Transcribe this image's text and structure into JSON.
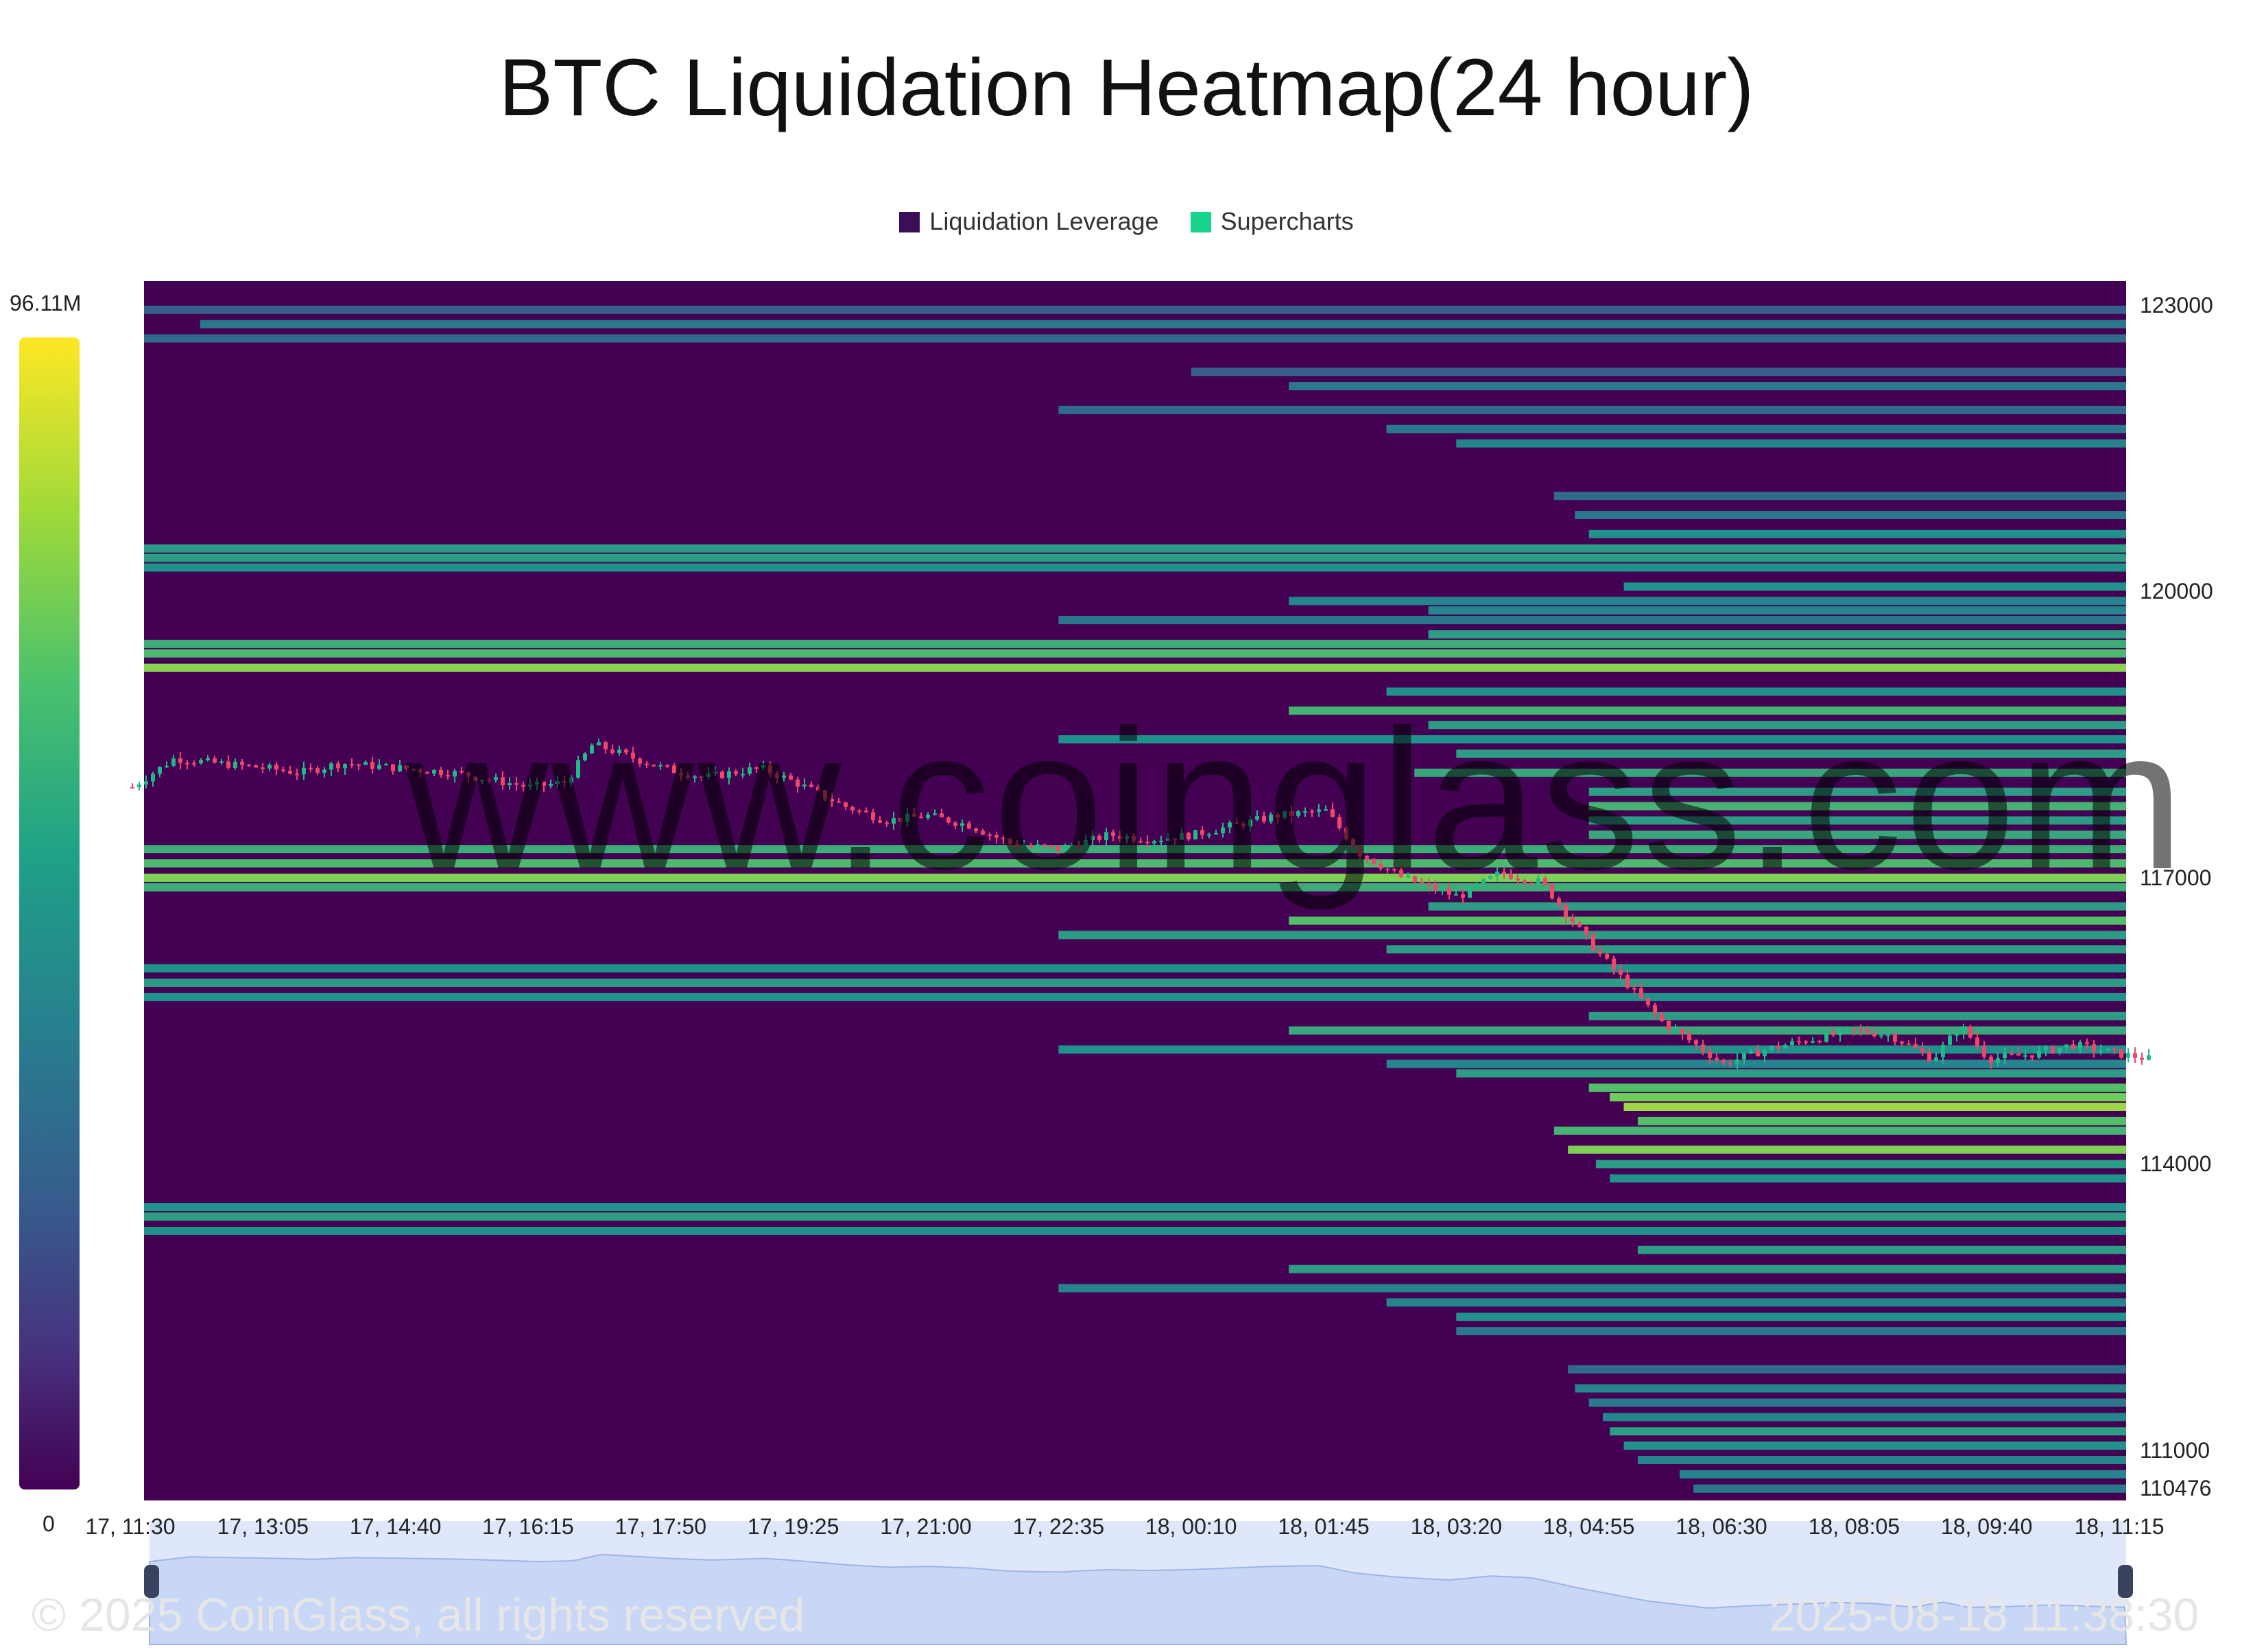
{
  "title": "BTC Liquidation Heatmap(24 hour)",
  "legend": [
    {
      "label": "Liquidation Leverage",
      "color": "#3b0f58"
    },
    {
      "label": "Supercharts",
      "color": "#19d48c"
    }
  ],
  "colorbar": {
    "max_label": "96.11M",
    "min_label": "0"
  },
  "watermark": "www.coinglass.com",
  "footer": {
    "copyright": "© 2025 CoinGlass, all rights reserved",
    "timestamp": "2025-08-18 11:38:30"
  },
  "chart_data": {
    "type": "heatmap",
    "title": "BTC Liquidation Heatmap(24 hour)",
    "x_tick_labels": [
      "17, 11:30",
      "17, 13:05",
      "17, 14:40",
      "17, 16:15",
      "17, 17:50",
      "17, 19:25",
      "17, 21:00",
      "17, 22:35",
      "18, 00:10",
      "18, 01:45",
      "18, 03:20",
      "18, 04:55",
      "18, 06:30",
      "18, 08:05",
      "18, 09:40",
      "18, 11:15"
    ],
    "y_tick_labels": [
      "123000",
      "120000",
      "117000",
      "114000",
      "111000",
      "110476"
    ],
    "ylim": [
      110476,
      123250
    ],
    "colorscale": {
      "min": 0,
      "max_label": "96.11M"
    },
    "bands": [
      {
        "price": 122950,
        "start": "17, 11:30",
        "value": 0.3
      },
      {
        "price": 122800,
        "start": "17, 12:20",
        "value": 0.4
      },
      {
        "price": 122650,
        "start": "17, 11:30",
        "value": 0.35
      },
      {
        "price": 122300,
        "start": "18, 00:10",
        "value": 0.3
      },
      {
        "price": 122150,
        "start": "18, 01:20",
        "value": 0.4
      },
      {
        "price": 121900,
        "start": "17, 22:35",
        "value": 0.35
      },
      {
        "price": 121700,
        "start": "18, 02:30",
        "value": 0.4
      },
      {
        "price": 121550,
        "start": "18, 03:20",
        "value": 0.45
      },
      {
        "price": 121000,
        "start": "18, 04:30",
        "value": 0.35
      },
      {
        "price": 120800,
        "start": "18, 04:45",
        "value": 0.4
      },
      {
        "price": 120600,
        "start": "18, 04:55",
        "value": 0.5
      },
      {
        "price": 120450,
        "start": "17, 11:30",
        "value": 0.55
      },
      {
        "price": 120350,
        "start": "17, 11:30",
        "value": 0.55
      },
      {
        "price": 120250,
        "start": "17, 11:30",
        "value": 0.5
      },
      {
        "price": 120050,
        "start": "18, 05:20",
        "value": 0.5
      },
      {
        "price": 119900,
        "start": "18, 01:20",
        "value": 0.45
      },
      {
        "price": 119800,
        "start": "18, 03:00",
        "value": 0.45
      },
      {
        "price": 119700,
        "start": "17, 22:35",
        "value": 0.4
      },
      {
        "price": 119550,
        "start": "18, 03:00",
        "value": 0.55
      },
      {
        "price": 119450,
        "start": "17, 11:30",
        "value": 0.62
      },
      {
        "price": 119350,
        "start": "17, 11:30",
        "value": 0.68
      },
      {
        "price": 119200,
        "start": "17, 11:30",
        "value": 0.82
      },
      {
        "price": 118950,
        "start": "18, 02:30",
        "value": 0.5
      },
      {
        "price": 118750,
        "start": "18, 01:20",
        "value": 0.65
      },
      {
        "price": 118600,
        "start": "18, 03:00",
        "value": 0.55
      },
      {
        "price": 118450,
        "start": "17, 22:35",
        "value": 0.5
      },
      {
        "price": 118300,
        "start": "18, 03:20",
        "value": 0.55
      },
      {
        "price": 118100,
        "start": "18, 02:50",
        "value": 0.6
      },
      {
        "price": 117900,
        "start": "18, 04:55",
        "value": 0.55
      },
      {
        "price": 117750,
        "start": "18, 04:55",
        "value": 0.65
      },
      {
        "price": 117600,
        "start": "18, 04:55",
        "value": 0.55
      },
      {
        "price": 117450,
        "start": "18, 04:55",
        "value": 0.6
      },
      {
        "price": 117300,
        "start": "17, 11:30",
        "value": 0.62
      },
      {
        "price": 117150,
        "start": "17, 11:30",
        "value": 0.68
      },
      {
        "price": 117000,
        "start": "17, 11:30",
        "value": 0.8
      },
      {
        "price": 116900,
        "start": "17, 11:30",
        "value": 0.62
      },
      {
        "price": 116700,
        "start": "18, 03:00",
        "value": 0.55
      },
      {
        "price": 116550,
        "start": "18, 01:20",
        "value": 0.7
      },
      {
        "price": 116400,
        "start": "17, 22:35",
        "value": 0.55
      },
      {
        "price": 116250,
        "start": "18, 02:30",
        "value": 0.55
      },
      {
        "price": 116050,
        "start": "17, 11:30",
        "value": 0.5
      },
      {
        "price": 115900,
        "start": "17, 11:30",
        "value": 0.55
      },
      {
        "price": 115750,
        "start": "17, 11:30",
        "value": 0.5
      },
      {
        "price": 115550,
        "start": "18, 04:55",
        "value": 0.55
      },
      {
        "price": 115400,
        "start": "18, 01:20",
        "value": 0.6
      },
      {
        "price": 115200,
        "start": "17, 22:35",
        "value": 0.5
      },
      {
        "price": 115050,
        "start": "18, 02:30",
        "value": 0.45
      },
      {
        "price": 114950,
        "start": "18, 03:20",
        "value": 0.55
      },
      {
        "price": 114800,
        "start": "18, 04:55",
        "value": 0.7
      },
      {
        "price": 114700,
        "start": "18, 05:10",
        "value": 0.78
      },
      {
        "price": 114600,
        "start": "18, 05:20",
        "value": 0.85
      },
      {
        "price": 114450,
        "start": "18, 05:30",
        "value": 0.7
      },
      {
        "price": 114350,
        "start": "18, 04:30",
        "value": 0.65
      },
      {
        "price": 114150,
        "start": "18, 04:40",
        "value": 0.8
      },
      {
        "price": 114000,
        "start": "18, 05:00",
        "value": 0.55
      },
      {
        "price": 113850,
        "start": "18, 05:10",
        "value": 0.5
      },
      {
        "price": 113550,
        "start": "17, 11:30",
        "value": 0.5
      },
      {
        "price": 113450,
        "start": "17, 11:30",
        "value": 0.55
      },
      {
        "price": 113300,
        "start": "17, 11:30",
        "value": 0.5
      },
      {
        "price": 113100,
        "start": "18, 05:30",
        "value": 0.55
      },
      {
        "price": 112900,
        "start": "18, 01:20",
        "value": 0.55
      },
      {
        "price": 112700,
        "start": "17, 22:35",
        "value": 0.45
      },
      {
        "price": 112550,
        "start": "18, 02:30",
        "value": 0.45
      },
      {
        "price": 112400,
        "start": "18, 03:20",
        "value": 0.5
      },
      {
        "price": 112250,
        "start": "18, 03:20",
        "value": 0.4
      },
      {
        "price": 111850,
        "start": "18, 04:40",
        "value": 0.35
      },
      {
        "price": 111650,
        "start": "18, 04:45",
        "value": 0.45
      },
      {
        "price": 111500,
        "start": "18, 04:55",
        "value": 0.4
      },
      {
        "price": 111350,
        "start": "18, 05:05",
        "value": 0.45
      },
      {
        "price": 111200,
        "start": "18, 05:10",
        "value": 0.55
      },
      {
        "price": 111050,
        "start": "18, 05:20",
        "value": 0.5
      },
      {
        "price": 110900,
        "start": "18, 05:30",
        "value": 0.45
      },
      {
        "price": 110750,
        "start": "18, 06:00",
        "value": 0.45
      },
      {
        "price": 110600,
        "start": "18, 06:10",
        "value": 0.4
      }
    ],
    "price_series": {
      "times": [
        "17, 11:30",
        "17, 12:00",
        "17, 12:30",
        "17, 13:05",
        "17, 13:30",
        "17, 14:00",
        "17, 14:40",
        "17, 15:20",
        "17, 16:15",
        "17, 16:40",
        "17, 17:00",
        "17, 17:50",
        "17, 18:20",
        "17, 19:00",
        "17, 19:25",
        "17, 20:00",
        "17, 20:30",
        "17, 21:00",
        "17, 21:30",
        "17, 22:00",
        "17, 22:35",
        "17, 23:10",
        "17, 23:40",
        "18, 00:10",
        "18, 00:40",
        "18, 01:10",
        "18, 01:45",
        "18, 02:10",
        "18, 02:40",
        "18, 03:20",
        "18, 03:50",
        "18, 04:20",
        "18, 04:55",
        "18, 05:20",
        "18, 05:45",
        "18, 06:10",
        "18, 06:30",
        "18, 07:00",
        "18, 07:30",
        "18, 08:05",
        "18, 08:30",
        "18, 09:00",
        "18, 09:20",
        "18, 09:40",
        "18, 10:10",
        "18, 10:40",
        "18, 11:15",
        "18, 11:35"
      ],
      "close": [
        117950,
        118250,
        118200,
        118150,
        118100,
        118200,
        118150,
        118100,
        117950,
        118000,
        118400,
        118150,
        118050,
        118150,
        118000,
        117750,
        117600,
        117650,
        117550,
        117350,
        117300,
        117450,
        117400,
        117450,
        117550,
        117650,
        117700,
        117250,
        117000,
        116800,
        117050,
        116950,
        116300,
        115900,
        115500,
        115250,
        115050,
        115200,
        115300,
        115400,
        115350,
        115100,
        115450,
        115100,
        115150,
        115250,
        115150,
        115100
      ]
    }
  }
}
